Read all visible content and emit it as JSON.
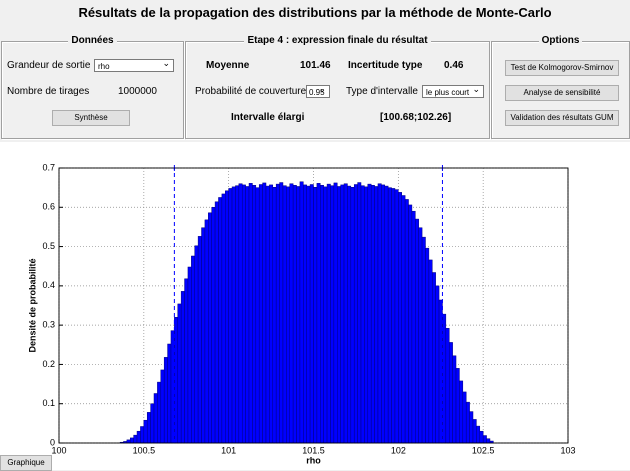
{
  "header": {
    "title": "Résultats de la propagation des distributions par la méthode de Monte-Carlo"
  },
  "donnees": {
    "title": "Données",
    "output_label": "Grandeur de sortie",
    "output_value": "rho",
    "draws_label": "Nombre de tirages",
    "draws_value": "1000000",
    "button": "Synthèse"
  },
  "etape": {
    "title": "Etape 4 : expression finale du résultat",
    "mean_label": "Moyenne",
    "mean_value": "101.46",
    "uncert_label": "Incertitude type",
    "uncert_value": "0.46",
    "coverage_label": "Probabilité de couverture",
    "coverage_value": "0.95",
    "interval_type_label": "Type d'intervalle",
    "interval_type_value": "le plus court",
    "interval_label": "Intervalle élargi",
    "interval_value": "[100.68;102.26]"
  },
  "options": {
    "title": "Options",
    "buttons": [
      "Test de Kolmogorov-Smirnov",
      "Analyse de sensibilité",
      "Validation des résultats GUM"
    ]
  },
  "footer": {
    "button": "Graphique"
  },
  "chart_data": {
    "type": "histogram",
    "x_label": "rho",
    "y_label": "Densité de probabilité",
    "color": "#0000ff",
    "edge_color": "#00007f",
    "interval_color": "#0000ff",
    "xlim": [
      100,
      103
    ],
    "ylim": [
      0,
      0.7
    ],
    "xticks": [
      100,
      100.5,
      101,
      101.5,
      102,
      102.5,
      103
    ],
    "yticks": [
      0,
      0.1,
      0.2,
      0.3,
      0.4,
      0.5,
      0.6,
      0.7
    ],
    "grid": true,
    "interval_lines": [
      100.68,
      102.26
    ],
    "bins": [
      100.36,
      100.38,
      100.4,
      100.42,
      100.44,
      100.46,
      100.48,
      100.5,
      100.52,
      100.54,
      100.56,
      100.58,
      100.6,
      100.62,
      100.64,
      100.66,
      100.68,
      100.7,
      100.72,
      100.74,
      100.76,
      100.78,
      100.8,
      100.82,
      100.84,
      100.86,
      100.88,
      100.9,
      100.92,
      100.94,
      100.96,
      100.98,
      101,
      101.02,
      101.04,
      101.06,
      101.08,
      101.1,
      101.12,
      101.14,
      101.16,
      101.18,
      101.2,
      101.22,
      101.24,
      101.26,
      101.28,
      101.3,
      101.32,
      101.34,
      101.36,
      101.38,
      101.4,
      101.42,
      101.44,
      101.46,
      101.48,
      101.5,
      101.52,
      101.54,
      101.56,
      101.58,
      101.6,
      101.62,
      101.64,
      101.66,
      101.68,
      101.7,
      101.72,
      101.74,
      101.76,
      101.78,
      101.8,
      101.82,
      101.84,
      101.86,
      101.88,
      101.9,
      101.92,
      101.94,
      101.96,
      101.98,
      102,
      102.02,
      102.04,
      102.06,
      102.08,
      102.1,
      102.12,
      102.14,
      102.16,
      102.18,
      102.2,
      102.22,
      102.24,
      102.26,
      102.28,
      102.3,
      102.32,
      102.34,
      102.36,
      102.38,
      102.4,
      102.42,
      102.44,
      102.46,
      102.48,
      102.5,
      102.52,
      102.54,
      102.56
    ],
    "values": [
      0.002,
      0.004,
      0.008,
      0.013,
      0.02,
      0.03,
      0.042,
      0.058,
      0.078,
      0.1,
      0.126,
      0.155,
      0.186,
      0.218,
      0.252,
      0.286,
      0.32,
      0.354,
      0.386,
      0.418,
      0.448,
      0.476,
      0.502,
      0.526,
      0.548,
      0.568,
      0.586,
      0.6,
      0.614,
      0.625,
      0.634,
      0.642,
      0.648,
      0.652,
      0.655,
      0.66,
      0.657,
      0.653,
      0.661,
      0.656,
      0.65,
      0.658,
      0.662,
      0.654,
      0.657,
      0.651,
      0.659,
      0.663,
      0.655,
      0.652,
      0.66,
      0.656,
      0.653,
      0.665,
      0.657,
      0.654,
      0.658,
      0.651,
      0.661,
      0.656,
      0.652,
      0.659,
      0.655,
      0.662,
      0.653,
      0.657,
      0.66,
      0.654,
      0.651,
      0.658,
      0.663,
      0.655,
      0.652,
      0.659,
      0.656,
      0.653,
      0.66,
      0.657,
      0.654,
      0.65,
      0.648,
      0.645,
      0.638,
      0.63,
      0.62,
      0.606,
      0.59,
      0.57,
      0.548,
      0.524,
      0.496,
      0.466,
      0.434,
      0.4,
      0.364,
      0.328,
      0.292,
      0.256,
      0.222,
      0.19,
      0.158,
      0.13,
      0.104,
      0.08,
      0.06,
      0.043,
      0.03,
      0.019,
      0.011,
      0.005
    ]
  }
}
